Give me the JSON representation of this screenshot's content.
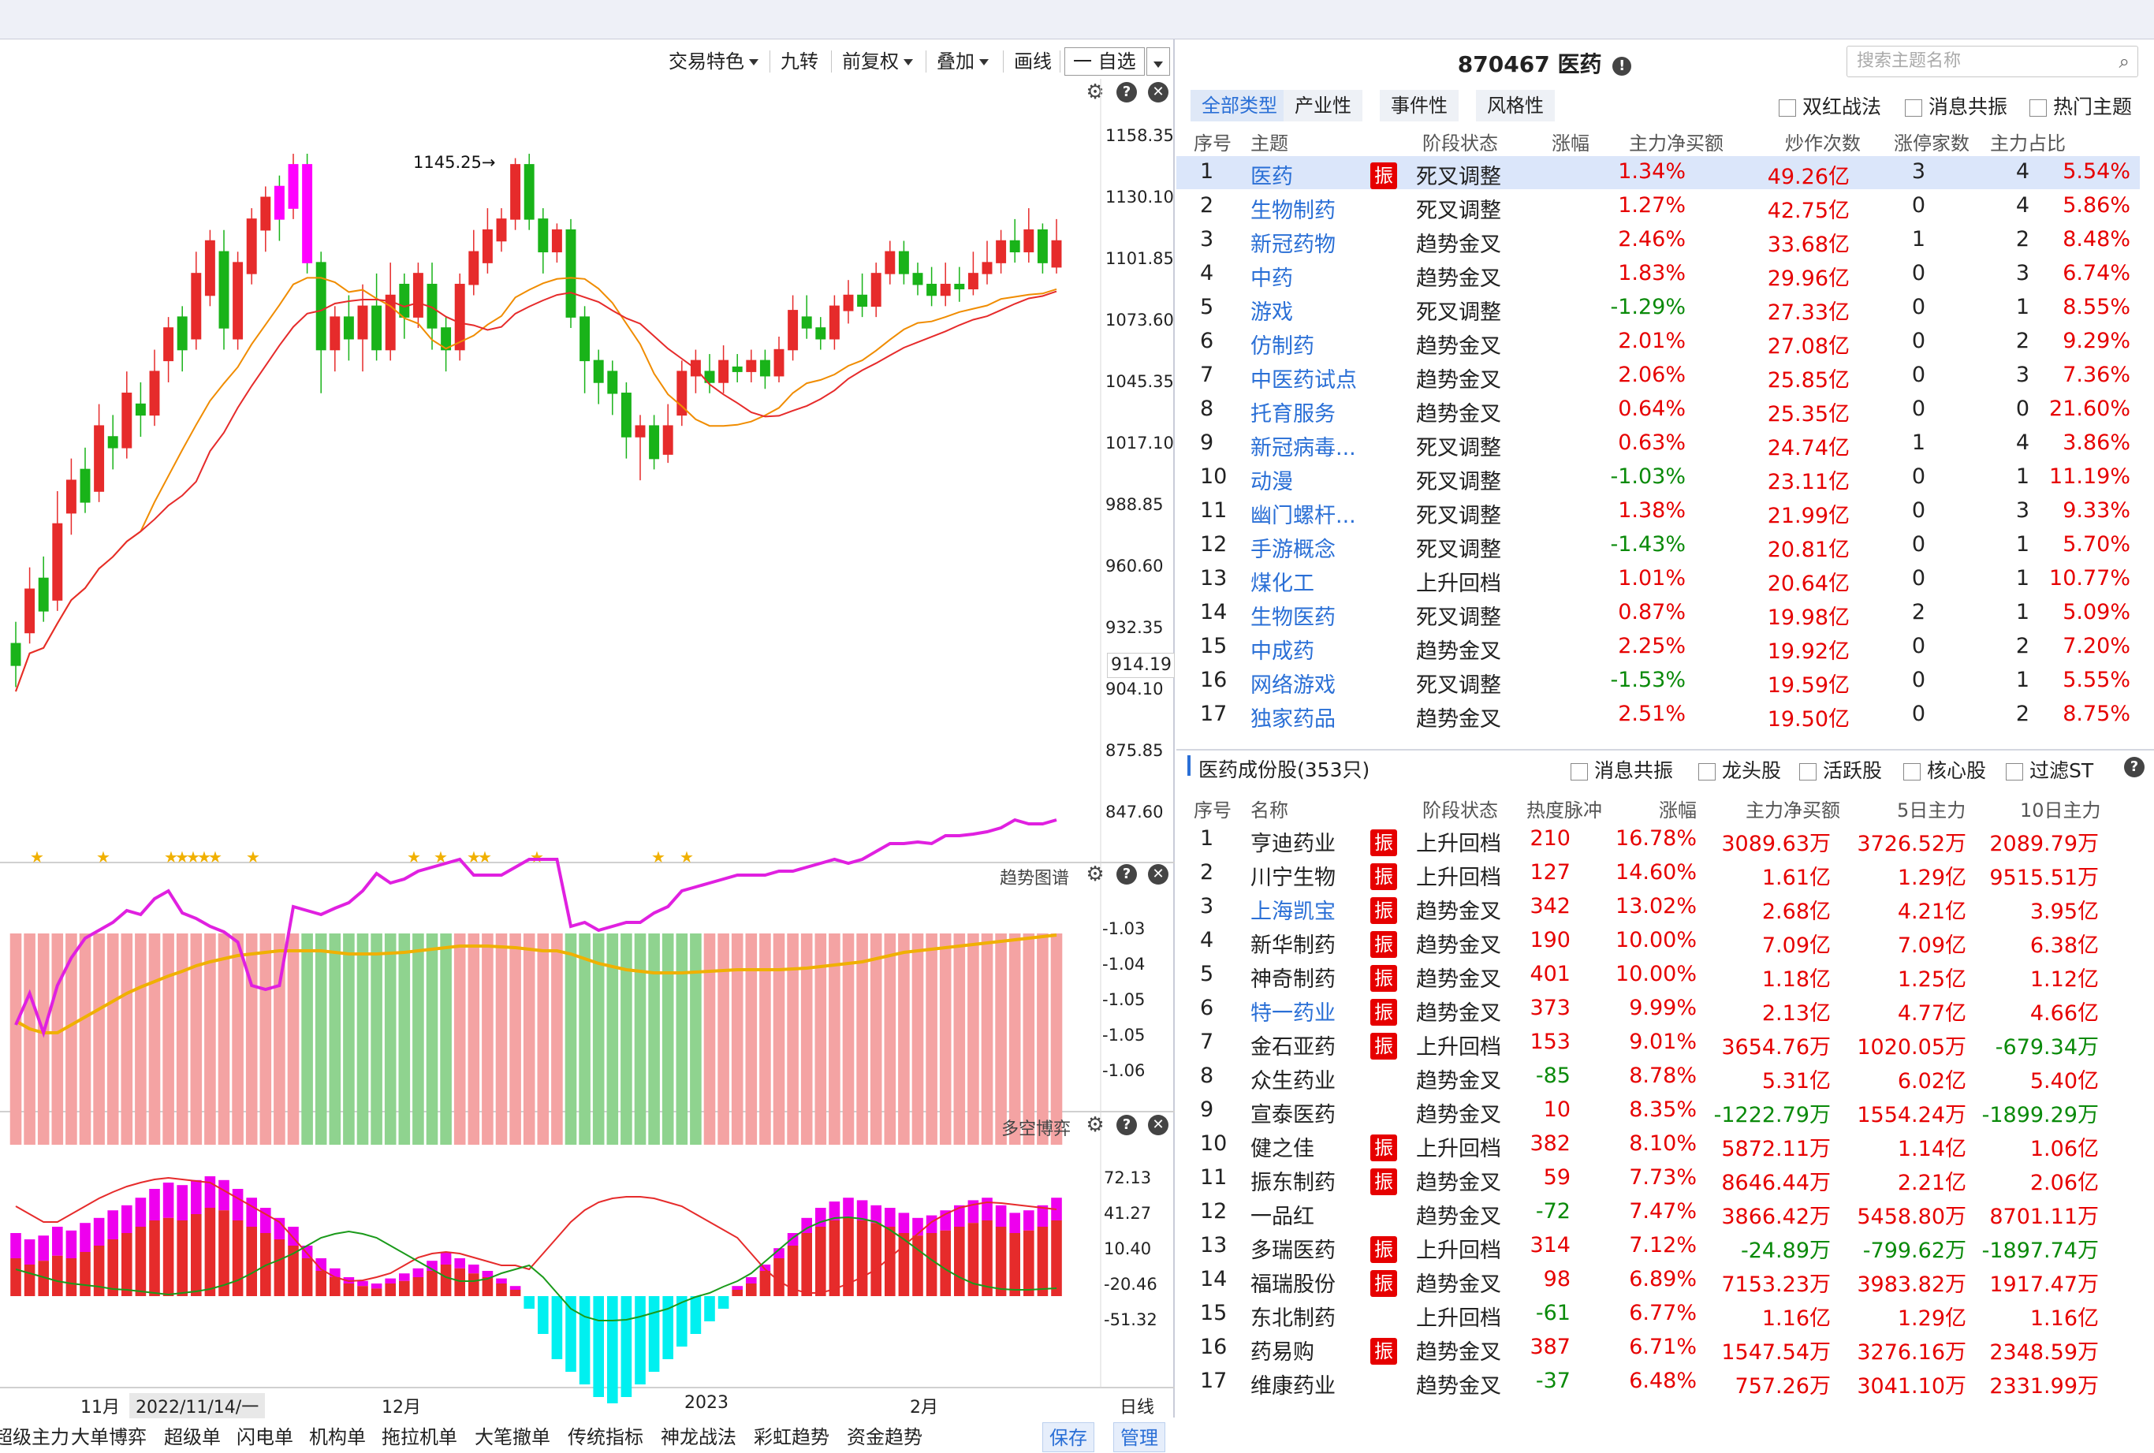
{
  "toolbar": {
    "trade_feature": "交易特色",
    "nine_turn": "九转",
    "pre_adjust": "前复权",
    "overlay": "叠加",
    "draw": "画线",
    "self_select": "一 自选"
  },
  "kline": {
    "annotation": "1145.25",
    "yticks": [
      "1158.35",
      "1130.10",
      "1101.85",
      "1073.60",
      "1045.35",
      "1017.10",
      "988.85",
      "960.60",
      "932.35",
      "904.10",
      "875.85",
      "847.60"
    ],
    "current_price": "914.19",
    "stars_label": "★"
  },
  "trend_panel": {
    "title": "趋势图谱",
    "yticks": [
      "-1.03",
      "-1.04",
      "-1.05",
      "-1.05",
      "-1.06"
    ]
  },
  "bullbear_panel": {
    "title": "多空博弈",
    "yticks": [
      "72.13",
      "41.27",
      "10.40",
      "-20.46",
      "-51.32"
    ]
  },
  "date_axis": {
    "labels": [
      "11月",
      "2022/11/14/一",
      "12月",
      "2023",
      "2月"
    ],
    "period": "日线"
  },
  "bottom_tabs": [
    "超级主力",
    "大单博弈",
    "超级单",
    "闪电单",
    "机构单",
    "拖拉机单",
    "大笔撤单",
    "传统指标",
    "神龙战法",
    "彩虹趋势",
    "资金趋势"
  ],
  "bottom_buttons": {
    "save": "保存",
    "manage": "管理"
  },
  "theme_header": {
    "code_name": "870467 医药",
    "search_placeholder": "搜索主题名称"
  },
  "theme_tabs": [
    "全部类型",
    "产业性",
    "事件性",
    "风格性"
  ],
  "theme_filters": [
    "双红战法",
    "消息共振",
    "热门主题"
  ],
  "theme_columns": [
    "序号",
    "主题",
    "阶段状态",
    "涨幅",
    "主力净买额",
    "炒作次数",
    "涨停家数",
    "主力占比"
  ],
  "themes": [
    {
      "no": "1",
      "name": "医药",
      "tag": "振",
      "stage": "死叉调整",
      "chg": "1.34%",
      "net": "49.26亿",
      "times": "3",
      "limit": "4",
      "ratio": "5.54%",
      "dir": "up"
    },
    {
      "no": "2",
      "name": "生物制药",
      "tag": "",
      "stage": "死叉调整",
      "chg": "1.27%",
      "net": "42.75亿",
      "times": "0",
      "limit": "4",
      "ratio": "5.86%",
      "dir": "up"
    },
    {
      "no": "3",
      "name": "新冠药物",
      "tag": "",
      "stage": "趋势金叉",
      "chg": "2.46%",
      "net": "33.68亿",
      "times": "1",
      "limit": "2",
      "ratio": "8.48%",
      "dir": "up"
    },
    {
      "no": "4",
      "name": "中药",
      "tag": "",
      "stage": "趋势金叉",
      "chg": "1.83%",
      "net": "29.96亿",
      "times": "0",
      "limit": "3",
      "ratio": "6.74%",
      "dir": "up"
    },
    {
      "no": "5",
      "name": "游戏",
      "tag": "",
      "stage": "死叉调整",
      "chg": "-1.29%",
      "net": "27.33亿",
      "times": "0",
      "limit": "1",
      "ratio": "8.55%",
      "dir": "down"
    },
    {
      "no": "6",
      "name": "仿制药",
      "tag": "",
      "stage": "趋势金叉",
      "chg": "2.01%",
      "net": "27.08亿",
      "times": "0",
      "limit": "2",
      "ratio": "9.29%",
      "dir": "up"
    },
    {
      "no": "7",
      "name": "中医药试点",
      "tag": "",
      "stage": "趋势金叉",
      "chg": "2.06%",
      "net": "25.85亿",
      "times": "0",
      "limit": "3",
      "ratio": "7.36%",
      "dir": "up"
    },
    {
      "no": "8",
      "name": "托育服务",
      "tag": "",
      "stage": "趋势金叉",
      "chg": "0.64%",
      "net": "25.35亿",
      "times": "0",
      "limit": "0",
      "ratio": "21.60%",
      "dir": "up"
    },
    {
      "no": "9",
      "name": "新冠病毒...",
      "tag": "",
      "stage": "死叉调整",
      "chg": "0.63%",
      "net": "24.74亿",
      "times": "1",
      "limit": "4",
      "ratio": "3.86%",
      "dir": "up"
    },
    {
      "no": "10",
      "name": "动漫",
      "tag": "",
      "stage": "死叉调整",
      "chg": "-1.03%",
      "net": "23.11亿",
      "times": "0",
      "limit": "1",
      "ratio": "11.19%",
      "dir": "down"
    },
    {
      "no": "11",
      "name": "幽门螺杆...",
      "tag": "",
      "stage": "死叉调整",
      "chg": "1.38%",
      "net": "21.99亿",
      "times": "0",
      "limit": "3",
      "ratio": "9.33%",
      "dir": "up"
    },
    {
      "no": "12",
      "name": "手游概念",
      "tag": "",
      "stage": "死叉调整",
      "chg": "-1.43%",
      "net": "20.81亿",
      "times": "0",
      "limit": "1",
      "ratio": "5.70%",
      "dir": "down"
    },
    {
      "no": "13",
      "name": "煤化工",
      "tag": "",
      "stage": "上升回档",
      "chg": "1.01%",
      "net": "20.64亿",
      "times": "0",
      "limit": "1",
      "ratio": "10.77%",
      "dir": "up"
    },
    {
      "no": "14",
      "name": "生物医药",
      "tag": "",
      "stage": "死叉调整",
      "chg": "0.87%",
      "net": "19.98亿",
      "times": "2",
      "limit": "1",
      "ratio": "5.09%",
      "dir": "up"
    },
    {
      "no": "15",
      "name": "中成药",
      "tag": "",
      "stage": "趋势金叉",
      "chg": "2.25%",
      "net": "19.92亿",
      "times": "0",
      "limit": "2",
      "ratio": "7.20%",
      "dir": "up"
    },
    {
      "no": "16",
      "name": "网络游戏",
      "tag": "",
      "stage": "死叉调整",
      "chg": "-1.53%",
      "net": "19.59亿",
      "times": "0",
      "limit": "1",
      "ratio": "5.55%",
      "dir": "down"
    },
    {
      "no": "17",
      "name": "独家药品",
      "tag": "",
      "stage": "趋势金叉",
      "chg": "2.51%",
      "net": "19.50亿",
      "times": "0",
      "limit": "2",
      "ratio": "8.75%",
      "dir": "up"
    }
  ],
  "stocks_header": {
    "title": "医药成份股(353只)",
    "filters": [
      "消息共振",
      "龙头股",
      "活跃股",
      "核心股",
      "过滤ST"
    ]
  },
  "stock_columns": [
    "序号",
    "名称",
    "阶段状态",
    "热度脉冲",
    "涨幅",
    "主力净买额",
    "5日主力",
    "10日主力"
  ],
  "stocks": [
    {
      "no": "1",
      "name": "亨迪药业",
      "tag": "振",
      "stage": "上升回档",
      "heat": "210",
      "chg": "16.78%",
      "net": "3089.63万",
      "d5": "3726.52万",
      "d10": "2089.79万",
      "blue": false
    },
    {
      "no": "2",
      "name": "川宁生物",
      "tag": "振",
      "stage": "上升回档",
      "heat": "127",
      "chg": "14.60%",
      "net": "1.61亿",
      "d5": "1.29亿",
      "d10": "9515.51万",
      "blue": false
    },
    {
      "no": "3",
      "name": "上海凯宝",
      "tag": "振",
      "stage": "趋势金叉",
      "heat": "342",
      "chg": "13.02%",
      "net": "2.68亿",
      "d5": "4.21亿",
      "d10": "3.95亿",
      "blue": true
    },
    {
      "no": "4",
      "name": "新华制药",
      "tag": "振",
      "stage": "趋势金叉",
      "heat": "190",
      "chg": "10.00%",
      "net": "7.09亿",
      "d5": "7.09亿",
      "d10": "6.38亿",
      "blue": false
    },
    {
      "no": "5",
      "name": "神奇制药",
      "tag": "振",
      "stage": "趋势金叉",
      "heat": "401",
      "chg": "10.00%",
      "net": "1.18亿",
      "d5": "1.25亿",
      "d10": "1.12亿",
      "blue": false
    },
    {
      "no": "6",
      "name": "特一药业",
      "tag": "振",
      "stage": "趋势金叉",
      "heat": "373",
      "chg": "9.99%",
      "net": "2.13亿",
      "d5": "4.77亿",
      "d10": "4.66亿",
      "blue": true
    },
    {
      "no": "7",
      "name": "金石亚药",
      "tag": "振",
      "stage": "上升回档",
      "heat": "153",
      "chg": "9.01%",
      "net": "3654.76万",
      "d5": "1020.05万",
      "d10": "-679.34万",
      "blue": false
    },
    {
      "no": "8",
      "name": "众生药业",
      "tag": "",
      "stage": "趋势金叉",
      "heat": "-85",
      "chg": "8.78%",
      "net": "5.31亿",
      "d5": "6.02亿",
      "d10": "5.40亿",
      "blue": false
    },
    {
      "no": "9",
      "name": "宣泰医药",
      "tag": "",
      "stage": "趋势金叉",
      "heat": "10",
      "chg": "8.35%",
      "net": "-1222.79万",
      "d5": "1554.24万",
      "d10": "-1899.29万",
      "blue": false
    },
    {
      "no": "10",
      "name": "健之佳",
      "tag": "振",
      "stage": "上升回档",
      "heat": "382",
      "chg": "8.10%",
      "net": "5872.11万",
      "d5": "1.14亿",
      "d10": "1.06亿",
      "blue": false
    },
    {
      "no": "11",
      "name": "振东制药",
      "tag": "振",
      "stage": "趋势金叉",
      "heat": "59",
      "chg": "7.73%",
      "net": "8646.44万",
      "d5": "2.21亿",
      "d10": "2.06亿",
      "blue": false
    },
    {
      "no": "12",
      "name": "一品红",
      "tag": "",
      "stage": "趋势金叉",
      "heat": "-72",
      "chg": "7.47%",
      "net": "3866.42万",
      "d5": "5458.80万",
      "d10": "8701.11万",
      "blue": false
    },
    {
      "no": "13",
      "name": "多瑞医药",
      "tag": "振",
      "stage": "上升回档",
      "heat": "314",
      "chg": "7.12%",
      "net": "-24.89万",
      "d5": "-799.62万",
      "d10": "-1897.74万",
      "blue": false
    },
    {
      "no": "14",
      "name": "福瑞股份",
      "tag": "振",
      "stage": "趋势金叉",
      "heat": "98",
      "chg": "6.89%",
      "net": "7153.23万",
      "d5": "3983.82万",
      "d10": "1917.47万",
      "blue": false
    },
    {
      "no": "15",
      "name": "东北制药",
      "tag": "",
      "stage": "上升回档",
      "heat": "-61",
      "chg": "6.77%",
      "net": "1.16亿",
      "d5": "1.29亿",
      "d10": "1.16亿",
      "blue": false
    },
    {
      "no": "16",
      "name": "药易购",
      "tag": "振",
      "stage": "趋势金叉",
      "heat": "387",
      "chg": "6.71%",
      "net": "1547.54万",
      "d5": "3276.16万",
      "d10": "2348.59万",
      "blue": false
    },
    {
      "no": "17",
      "name": "维康药业",
      "tag": "",
      "stage": "趋势金叉",
      "heat": "-37",
      "chg": "6.48%",
      "net": "757.26万",
      "d5": "3041.10万",
      "d10": "2331.99万",
      "blue": false
    }
  ],
  "colors": {
    "up": "#e62b2b",
    "down": "#19b319",
    "accent": "#2a6fd6",
    "ma1": "#e62b2b",
    "ma2": "#f08c00",
    "trend_up_bg": "#f4a3a3",
    "trend_down_bg": "#8fd38f",
    "trend_line1": "#e020e0",
    "trend_line2": "#f0b000",
    "bull": "#ee00ee",
    "bear": "#00f0f0",
    "bar_red": "#e62b2b"
  }
}
